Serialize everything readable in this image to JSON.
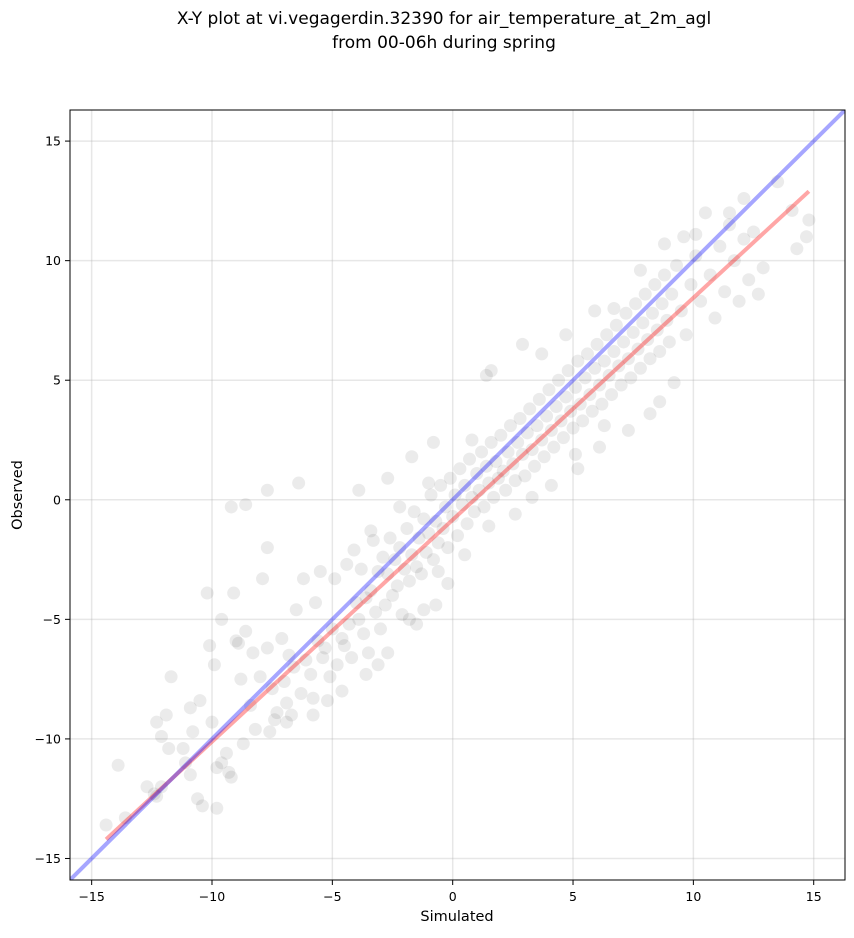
{
  "chart_data": {
    "type": "scatter",
    "title": "X-Y plot at vi.vegagerdin.32390 for air_temperature_at_2m_agl",
    "subtitle": "from 00-06h during spring",
    "xlabel": "Simulated",
    "ylabel": "Observed",
    "xlim": [
      -15.9,
      16.3
    ],
    "ylim": [
      -15.9,
      16.3
    ],
    "xticks": [
      -15,
      -10,
      -5,
      0,
      5,
      10,
      15
    ],
    "yticks": [
      -15,
      -10,
      -5,
      0,
      5,
      10,
      15
    ],
    "xtick_labels": [
      "−15",
      "−10",
      "−5",
      "0",
      "5",
      "10",
      "15"
    ],
    "ytick_labels": [
      "−15",
      "−10",
      "−5",
      "0",
      "5",
      "10",
      "15"
    ],
    "grid": true,
    "point_color": "#000000",
    "point_alpha": 0.08,
    "points": [
      [
        -14.4,
        -13.6
      ],
      [
        -13.9,
        -11.1
      ],
      [
        -13.6,
        -13.3
      ],
      [
        -12.7,
        -12.0
      ],
      [
        -12.4,
        -12.3
      ],
      [
        -12.3,
        -12.4
      ],
      [
        -12.1,
        -9.9
      ],
      [
        -11.9,
        -9.0
      ],
      [
        -11.8,
        -10.4
      ],
      [
        -11.7,
        -7.4
      ],
      [
        -11.2,
        -10.4
      ],
      [
        -11.1,
        -11.0
      ],
      [
        -10.9,
        -11.5
      ],
      [
        -10.8,
        -9.7
      ],
      [
        -10.6,
        -12.5
      ],
      [
        -10.5,
        -8.4
      ],
      [
        -10.4,
        -12.8
      ],
      [
        -10.2,
        -3.9
      ],
      [
        -10.1,
        -6.1
      ],
      [
        -10.0,
        -9.3
      ],
      [
        -9.9,
        -6.9
      ],
      [
        -9.8,
        -11.2
      ],
      [
        -9.6,
        -11.0
      ],
      [
        -9.4,
        -10.6
      ],
      [
        -9.3,
        -11.4
      ],
      [
        -9.2,
        -0.3
      ],
      [
        -9.1,
        -3.9
      ],
      [
        -9.0,
        -5.9
      ],
      [
        -8.8,
        -7.5
      ],
      [
        -8.6,
        -5.5
      ],
      [
        -8.6,
        -0.2
      ],
      [
        -8.4,
        -8.6
      ],
      [
        -8.3,
        -6.4
      ],
      [
        -8.2,
        -9.6
      ],
      [
        -8.0,
        -7.4
      ],
      [
        -7.9,
        -3.3
      ],
      [
        -7.7,
        -6.2
      ],
      [
        -7.5,
        -7.9
      ],
      [
        -7.4,
        -9.2
      ],
      [
        -7.3,
        -8.9
      ],
      [
        -7.1,
        -5.8
      ],
      [
        -7.0,
        -7.6
      ],
      [
        -6.9,
        -8.5
      ],
      [
        -6.8,
        -6.5
      ],
      [
        -6.7,
        -9.0
      ],
      [
        -6.6,
        -7.0
      ],
      [
        -6.5,
        -4.6
      ],
      [
        -6.3,
        -8.1
      ],
      [
        -6.2,
        -3.3
      ],
      [
        -6.1,
        -6.7
      ],
      [
        -5.9,
        -7.3
      ],
      [
        -5.8,
        -8.3
      ],
      [
        -5.7,
        -4.3
      ],
      [
        -5.6,
        -5.9
      ],
      [
        -5.5,
        -3.0
      ],
      [
        -5.4,
        -6.6
      ],
      [
        -5.3,
        -6.2
      ],
      [
        -5.1,
        -7.4
      ],
      [
        -5.0,
        -5.4
      ],
      [
        -4.9,
        -3.3
      ],
      [
        -4.8,
        -6.9
      ],
      [
        -4.6,
        -5.8
      ],
      [
        -4.5,
        -6.1
      ],
      [
        -4.4,
        -2.7
      ],
      [
        -4.3,
        -5.2
      ],
      [
        -4.2,
        -6.6
      ],
      [
        -4.0,
        -4.3
      ],
      [
        -3.9,
        -5.0
      ],
      [
        -3.8,
        -2.9
      ],
      [
        -3.7,
        -5.6
      ],
      [
        -3.6,
        -4.1
      ],
      [
        -3.5,
        -6.4
      ],
      [
        -3.4,
        -3.8
      ],
      [
        -3.3,
        -1.7
      ],
      [
        -3.2,
        -4.7
      ],
      [
        -3.1,
        -3.0
      ],
      [
        -3.0,
        -5.4
      ],
      [
        -2.9,
        -2.4
      ],
      [
        -2.8,
        -4.4
      ],
      [
        -2.7,
        -3.1
      ],
      [
        -2.6,
        -1.6
      ],
      [
        -2.5,
        -4.0
      ],
      [
        -2.4,
        -2.5
      ],
      [
        -2.3,
        -3.6
      ],
      [
        -2.2,
        -2.0
      ],
      [
        -2.1,
        -4.8
      ],
      [
        -2.0,
        -2.9
      ],
      [
        -1.9,
        -1.2
      ],
      [
        -1.8,
        -3.4
      ],
      [
        -1.7,
        -2.3
      ],
      [
        -1.6,
        -0.5
      ],
      [
        -1.5,
        -2.8
      ],
      [
        -1.4,
        -1.6
      ],
      [
        -1.3,
        -3.1
      ],
      [
        -1.2,
        -0.8
      ],
      [
        -1.1,
        -2.2
      ],
      [
        -1.0,
        -1.4
      ],
      [
        -0.9,
        0.2
      ],
      [
        -0.8,
        -2.5
      ],
      [
        -0.7,
        -0.9
      ],
      [
        -0.6,
        -1.8
      ],
      [
        -0.5,
        0.6
      ],
      [
        -0.4,
        -1.2
      ],
      [
        -0.3,
        -0.3
      ],
      [
        -0.2,
        -2.0
      ],
      [
        -0.1,
        0.9
      ],
      [
        0.0,
        -0.7
      ],
      [
        0.1,
        0.2
      ],
      [
        0.2,
        -1.5
      ],
      [
        0.3,
        1.3
      ],
      [
        0.4,
        -0.2
      ],
      [
        0.5,
        0.6
      ],
      [
        0.6,
        -1.0
      ],
      [
        0.7,
        1.7
      ],
      [
        0.8,
        0.1
      ],
      [
        0.9,
        -0.5
      ],
      [
        1.0,
        1.1
      ],
      [
        1.1,
        0.4
      ],
      [
        1.2,
        2.0
      ],
      [
        1.3,
        -0.3
      ],
      [
        1.4,
        1.4
      ],
      [
        1.5,
        0.7
      ],
      [
        1.6,
        2.4
      ],
      [
        1.7,
        0.1
      ],
      [
        1.8,
        1.6
      ],
      [
        1.9,
        0.9
      ],
      [
        2.0,
        2.7
      ],
      [
        2.1,
        1.2
      ],
      [
        2.2,
        0.4
      ],
      [
        2.3,
        2.0
      ],
      [
        2.4,
        3.1
      ],
      [
        2.5,
        1.5
      ],
      [
        2.6,
        0.8
      ],
      [
        2.7,
        2.4
      ],
      [
        2.8,
        3.4
      ],
      [
        2.9,
        1.9
      ],
      [
        3.0,
        1.0
      ],
      [
        3.1,
        2.8
      ],
      [
        3.2,
        3.8
      ],
      [
        3.3,
        2.1
      ],
      [
        3.4,
        1.4
      ],
      [
        3.5,
        3.1
      ],
      [
        3.6,
        4.2
      ],
      [
        3.7,
        2.5
      ],
      [
        3.8,
        1.8
      ],
      [
        3.9,
        3.5
      ],
      [
        4.0,
        4.6
      ],
      [
        4.1,
        2.9
      ],
      [
        4.2,
        2.2
      ],
      [
        4.3,
        3.9
      ],
      [
        4.4,
        5.0
      ],
      [
        4.5,
        3.3
      ],
      [
        4.6,
        2.6
      ],
      [
        4.7,
        4.3
      ],
      [
        4.8,
        5.4
      ],
      [
        4.9,
        3.7
      ],
      [
        5.0,
        3.0
      ],
      [
        5.1,
        4.7
      ],
      [
        5.2,
        5.8
      ],
      [
        5.3,
        4.0
      ],
      [
        5.4,
        3.3
      ],
      [
        5.5,
        5.1
      ],
      [
        5.6,
        6.1
      ],
      [
        5.7,
        4.4
      ],
      [
        5.8,
        3.7
      ],
      [
        5.9,
        5.5
      ],
      [
        6.0,
        6.5
      ],
      [
        6.1,
        4.8
      ],
      [
        6.2,
        4.0
      ],
      [
        6.3,
        5.8
      ],
      [
        6.4,
        6.9
      ],
      [
        6.5,
        5.2
      ],
      [
        6.6,
        4.4
      ],
      [
        6.7,
        6.2
      ],
      [
        6.8,
        7.3
      ],
      [
        6.9,
        5.6
      ],
      [
        7.0,
        4.8
      ],
      [
        7.1,
        6.6
      ],
      [
        7.2,
        7.8
      ],
      [
        7.3,
        5.9
      ],
      [
        7.4,
        5.1
      ],
      [
        7.5,
        7.0
      ],
      [
        7.6,
        8.2
      ],
      [
        7.7,
        6.3
      ],
      [
        7.8,
        5.5
      ],
      [
        7.9,
        7.4
      ],
      [
        8.0,
        8.6
      ],
      [
        8.1,
        6.7
      ],
      [
        8.2,
        5.9
      ],
      [
        8.3,
        7.8
      ],
      [
        8.4,
        9.0
      ],
      [
        8.5,
        7.1
      ],
      [
        8.6,
        6.2
      ],
      [
        8.7,
        8.2
      ],
      [
        8.8,
        9.4
      ],
      [
        8.9,
        7.5
      ],
      [
        9.0,
        6.6
      ],
      [
        9.1,
        8.6
      ],
      [
        9.3,
        9.8
      ],
      [
        9.5,
        7.9
      ],
      [
        9.7,
        6.9
      ],
      [
        9.9,
        9.0
      ],
      [
        10.1,
        10.2
      ],
      [
        10.3,
        8.3
      ],
      [
        10.5,
        12.0
      ],
      [
        10.7,
        9.4
      ],
      [
        10.9,
        7.6
      ],
      [
        11.1,
        10.6
      ],
      [
        11.3,
        8.7
      ],
      [
        11.5,
        11.5
      ],
      [
        11.7,
        10.0
      ],
      [
        11.9,
        8.3
      ],
      [
        12.1,
        10.9
      ],
      [
        12.3,
        9.2
      ],
      [
        12.5,
        11.2
      ],
      [
        12.7,
        8.6
      ],
      [
        12.9,
        9.7
      ],
      [
        13.5,
        13.3
      ],
      [
        14.1,
        12.1
      ],
      [
        14.3,
        10.5
      ],
      [
        14.7,
        11.0
      ],
      [
        14.8,
        11.7
      ],
      [
        -7.7,
        0.4
      ],
      [
        -6.4,
        0.7
      ],
      [
        -3.9,
        0.4
      ],
      [
        -2.7,
        0.9
      ],
      [
        -1.7,
        1.8
      ],
      [
        -0.8,
        2.4
      ],
      [
        -3.4,
        -1.3
      ],
      [
        -4.1,
        -2.1
      ],
      [
        -2.2,
        -0.3
      ],
      [
        -1.0,
        0.7
      ],
      [
        0.8,
        2.5
      ],
      [
        1.4,
        5.2
      ],
      [
        1.6,
        5.4
      ],
      [
        2.9,
        6.5
      ],
      [
        3.7,
        6.1
      ],
      [
        4.7,
        6.9
      ],
      [
        5.9,
        7.9
      ],
      [
        6.7,
        8.0
      ],
      [
        7.8,
        9.6
      ],
      [
        8.8,
        10.7
      ],
      [
        9.6,
        11.0
      ],
      [
        10.1,
        11.1
      ],
      [
        11.5,
        12.0
      ],
      [
        12.1,
        12.6
      ],
      [
        -7.7,
        -2.0
      ],
      [
        -8.9,
        -6.0
      ],
      [
        -9.6,
        -5.0
      ],
      [
        -10.9,
        -8.7
      ],
      [
        -12.1,
        -12.0
      ],
      [
        -12.3,
        -9.3
      ],
      [
        -0.2,
        -3.5
      ],
      [
        -0.7,
        -4.4
      ],
      [
        -1.5,
        -5.2
      ],
      [
        -1.2,
        -4.6
      ],
      [
        -0.6,
        -3.0
      ],
      [
        0.5,
        -2.3
      ],
      [
        1.5,
        -1.1
      ],
      [
        2.6,
        -0.6
      ],
      [
        3.3,
        0.1
      ],
      [
        4.1,
        0.6
      ],
      [
        5.2,
        1.3
      ],
      [
        6.1,
        2.2
      ],
      [
        7.3,
        2.9
      ],
      [
        8.2,
        3.6
      ],
      [
        8.6,
        4.1
      ],
      [
        9.2,
        4.9
      ],
      [
        6.3,
        3.1
      ],
      [
        5.1,
        1.9
      ],
      [
        -5.8,
        -9.0
      ],
      [
        -6.9,
        -9.3
      ],
      [
        -7.6,
        -9.7
      ],
      [
        -8.7,
        -10.2
      ],
      [
        -9.2,
        -11.6
      ],
      [
        -9.8,
        -12.9
      ],
      [
        -4.6,
        -8.0
      ],
      [
        -3.6,
        -7.3
      ],
      [
        -2.7,
        -6.4
      ],
      [
        -1.8,
        -5.0
      ],
      [
        -3.1,
        -6.9
      ],
      [
        -5.2,
        -8.4
      ]
    ],
    "fit_line": {
      "color": "#ff0000",
      "alpha": 0.35,
      "x": [
        -14.4,
        14.8
      ],
      "y": [
        -14.2,
        12.9
      ]
    },
    "identity_line": {
      "color": "#0000ff",
      "alpha": 0.35,
      "x": [
        -15.9,
        16.3
      ],
      "y": [
        -15.9,
        16.3
      ]
    }
  }
}
